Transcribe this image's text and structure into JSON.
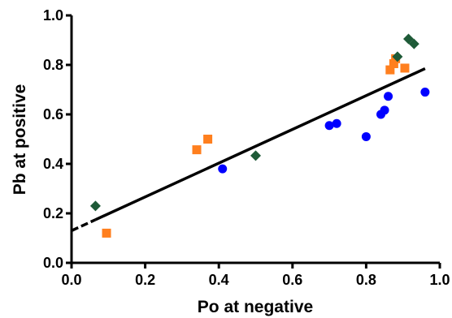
{
  "chart_data": {
    "type": "scatter",
    "title": "",
    "xlabel": "Po at negative",
    "ylabel": "Pb at positive",
    "xlim": [
      0.0,
      1.0
    ],
    "ylim": [
      0.0,
      1.0
    ],
    "x_ticks": [
      "0.0",
      "0.2",
      "0.4",
      "0.6",
      "0.8",
      "1.0"
    ],
    "y_ticks": [
      "0.0",
      "0.2",
      "0.4",
      "0.6",
      "0.8",
      "1.0"
    ],
    "grid": false,
    "legend": "none",
    "series": [
      {
        "marker": "circle",
        "color": "#0000ff",
        "points": [
          {
            "x": 0.41,
            "y": 0.38
          },
          {
            "x": 0.7,
            "y": 0.555
          },
          {
            "x": 0.72,
            "y": 0.563
          },
          {
            "x": 0.8,
            "y": 0.51
          },
          {
            "x": 0.84,
            "y": 0.6
          },
          {
            "x": 0.85,
            "y": 0.617
          },
          {
            "x": 0.86,
            "y": 0.673
          },
          {
            "x": 0.96,
            "y": 0.69
          }
        ]
      },
      {
        "marker": "square",
        "color": "#ff7f1e",
        "points": [
          {
            "x": 0.095,
            "y": 0.12
          },
          {
            "x": 0.34,
            "y": 0.457
          },
          {
            "x": 0.37,
            "y": 0.5
          },
          {
            "x": 0.865,
            "y": 0.78
          },
          {
            "x": 0.875,
            "y": 0.805
          },
          {
            "x": 0.88,
            "y": 0.825
          },
          {
            "x": 0.905,
            "y": 0.787
          }
        ]
      },
      {
        "marker": "diamond",
        "color": "#1e5a37",
        "points": [
          {
            "x": 0.065,
            "y": 0.23
          },
          {
            "x": 0.5,
            "y": 0.433
          },
          {
            "x": 0.885,
            "y": 0.833
          },
          {
            "x": 0.915,
            "y": 0.905
          },
          {
            "x": 0.93,
            "y": 0.885
          }
        ]
      }
    ],
    "fit_line": {
      "color": "#000000",
      "x": [
        0.0,
        0.96
      ],
      "y": [
        0.13,
        0.785
      ],
      "dashed_until_x": 0.065
    }
  }
}
